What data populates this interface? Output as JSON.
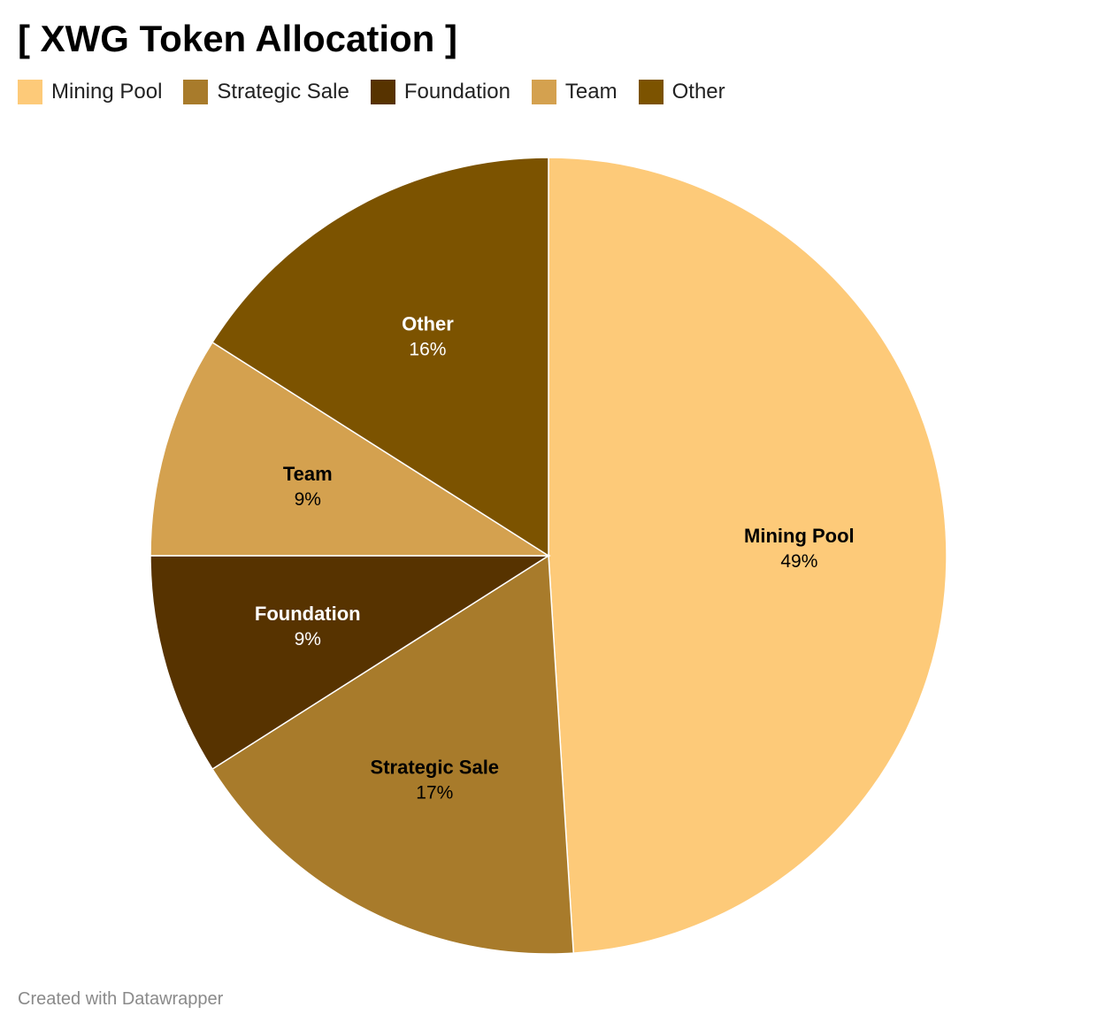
{
  "title": "[ XWG Token Allocation ]",
  "footer": "Created with Datawrapper",
  "legend": {
    "items": [
      {
        "label": "Mining Pool",
        "color": "#FDCA79"
      },
      {
        "label": "Strategic Sale",
        "color": "#A87B2B"
      },
      {
        "label": "Foundation",
        "color": "#573300"
      },
      {
        "label": "Team",
        "color": "#D4A14F"
      },
      {
        "label": "Other",
        "color": "#7C5300"
      }
    ]
  },
  "chart_data": {
    "type": "pie",
    "title": "[ XWG Token Allocation ]",
    "legend_position": "top-left",
    "slices": [
      {
        "name": "Mining Pool",
        "value": 49,
        "label": "49%",
        "color": "#FDCA79",
        "label_color": "#000000"
      },
      {
        "name": "Strategic Sale",
        "value": 17,
        "label": "17%",
        "color": "#A87B2B",
        "label_color": "#000000"
      },
      {
        "name": "Foundation",
        "value": 9,
        "label": "9%",
        "color": "#573300",
        "label_color": "#ffffff"
      },
      {
        "name": "Team",
        "value": 9,
        "label": "9%",
        "color": "#D4A14F",
        "label_color": "#000000"
      },
      {
        "name": "Other",
        "value": 16,
        "label": "16%",
        "color": "#7C5300",
        "label_color": "#ffffff"
      }
    ]
  }
}
